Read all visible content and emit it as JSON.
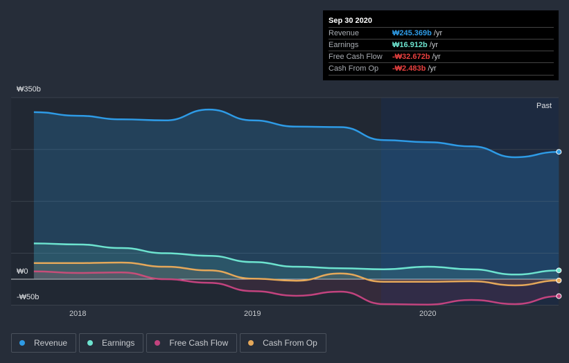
{
  "tooltip": {
    "date": "Sep 30 2020",
    "rows": [
      {
        "label": "Revenue",
        "value": "₩245.369b",
        "unit": " /yr",
        "color": "#2e9be6"
      },
      {
        "label": "Earnings",
        "value": "₩16.912b",
        "unit": " /yr",
        "color": "#6de3cf"
      },
      {
        "label": "Free Cash Flow",
        "value": "-₩32.672b",
        "unit": " /yr",
        "color": "#e8403f"
      },
      {
        "label": "Cash From Op",
        "value": "-₩2.483b",
        "unit": " /yr",
        "color": "#e8403f"
      }
    ]
  },
  "chart_data": {
    "type": "area",
    "x": [
      2017.75,
      2018.0,
      2018.25,
      2018.5,
      2018.75,
      2019.0,
      2019.25,
      2019.5,
      2019.75,
      2020.0,
      2020.25,
      2020.5,
      2020.75
    ],
    "series": [
      {
        "name": "Revenue",
        "color": "#2e9be6",
        "values": [
          322,
          315,
          308,
          306,
          327,
          306,
          294,
          293,
          268,
          264,
          256,
          235,
          245.369
        ]
      },
      {
        "name": "Earnings",
        "color": "#6de3cf",
        "values": [
          69,
          67,
          60,
          50,
          45,
          33,
          24,
          21,
          19,
          24,
          19,
          9,
          16.912
        ]
      },
      {
        "name": "Free Cash Flow",
        "color": "#c2437e",
        "values": [
          15,
          12,
          13,
          0,
          -7,
          -23,
          -32,
          -24,
          -48,
          -49,
          -40,
          -48,
          -32.672
        ]
      },
      {
        "name": "Cash From Op",
        "color": "#e5a85a",
        "values": [
          31,
          31,
          32,
          24,
          17,
          1,
          -3,
          11,
          -5,
          -5,
          -4,
          -12,
          -2.483
        ]
      }
    ],
    "y_tick_labels": [
      "₩350b",
      "₩0",
      "-₩50b"
    ],
    "x_tick_labels": [
      "2018",
      "2019",
      "2020"
    ],
    "ylim": [
      -50,
      350
    ],
    "annotation": "Past",
    "legend_position": "bottom-left"
  }
}
